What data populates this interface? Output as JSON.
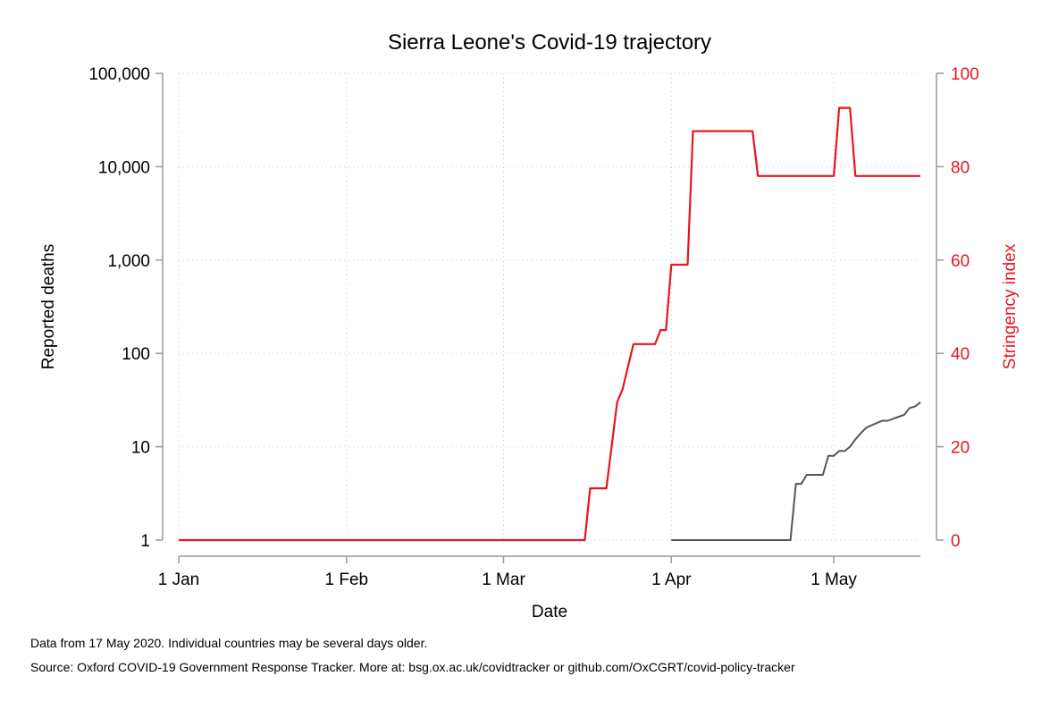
{
  "chart_data": {
    "type": "line",
    "title": "Sierra Leone's Covid-19 trajectory",
    "xlabel": "Date",
    "ylabel_left": "Reported deaths",
    "ylabel_right": "Stringency index",
    "x_ticks": [
      "1 Jan",
      "1 Feb",
      "1 Mar",
      "1 Apr",
      "1 May"
    ],
    "x_range": [
      "2020-01-01",
      "2020-05-17"
    ],
    "y_left_scale": "log",
    "y_left_ticks": [
      "1",
      "10",
      "100",
      "1,000",
      "10,000",
      "100,000"
    ],
    "y_left_range": [
      1,
      100000
    ],
    "y_right_ticks": [
      "0",
      "20",
      "40",
      "60",
      "80",
      "100"
    ],
    "y_right_range": [
      0,
      100
    ],
    "grid": true,
    "colors": {
      "deaths": "#555555",
      "stringency": "#e8141e",
      "axis": "#999999"
    },
    "series": [
      {
        "key": "deaths",
        "axis": "left",
        "points": [
          [
            "2020-04-01",
            1
          ],
          [
            "2020-04-02",
            1
          ],
          [
            "2020-04-03",
            1
          ],
          [
            "2020-04-04",
            1
          ],
          [
            "2020-04-05",
            1
          ],
          [
            "2020-04-06",
            1
          ],
          [
            "2020-04-07",
            1
          ],
          [
            "2020-04-08",
            1
          ],
          [
            "2020-04-09",
            1
          ],
          [
            "2020-04-10",
            1
          ],
          [
            "2020-04-11",
            1
          ],
          [
            "2020-04-12",
            1
          ],
          [
            "2020-04-13",
            1
          ],
          [
            "2020-04-14",
            1
          ],
          [
            "2020-04-15",
            1
          ],
          [
            "2020-04-16",
            1
          ],
          [
            "2020-04-17",
            1
          ],
          [
            "2020-04-18",
            1
          ],
          [
            "2020-04-19",
            1
          ],
          [
            "2020-04-20",
            1
          ],
          [
            "2020-04-21",
            1
          ],
          [
            "2020-04-22",
            1
          ],
          [
            "2020-04-23",
            1
          ],
          [
            "2020-04-24",
            4
          ],
          [
            "2020-04-25",
            4
          ],
          [
            "2020-04-26",
            5
          ],
          [
            "2020-04-27",
            5
          ],
          [
            "2020-04-28",
            5
          ],
          [
            "2020-04-29",
            5
          ],
          [
            "2020-04-30",
            8
          ],
          [
            "2020-05-01",
            8
          ],
          [
            "2020-05-02",
            9
          ],
          [
            "2020-05-03",
            9
          ],
          [
            "2020-05-04",
            10
          ],
          [
            "2020-05-05",
            12
          ],
          [
            "2020-05-06",
            14
          ],
          [
            "2020-05-07",
            16
          ],
          [
            "2020-05-08",
            17
          ],
          [
            "2020-05-09",
            18
          ],
          [
            "2020-05-10",
            19
          ],
          [
            "2020-05-11",
            19
          ],
          [
            "2020-05-12",
            20
          ],
          [
            "2020-05-13",
            21
          ],
          [
            "2020-05-14",
            22
          ],
          [
            "2020-05-15",
            26
          ],
          [
            "2020-05-16",
            27
          ],
          [
            "2020-05-17",
            30
          ]
        ]
      },
      {
        "key": "stringency",
        "axis": "right",
        "points": [
          [
            "2020-01-01",
            0
          ],
          [
            "2020-03-16",
            0
          ],
          [
            "2020-03-17",
            11.1
          ],
          [
            "2020-03-20",
            11.1
          ],
          [
            "2020-03-22",
            29.6
          ],
          [
            "2020-03-23",
            32.4
          ],
          [
            "2020-03-25",
            42
          ],
          [
            "2020-03-29",
            42
          ],
          [
            "2020-03-30",
            45
          ],
          [
            "2020-03-31",
            45
          ],
          [
            "2020-04-01",
            59
          ],
          [
            "2020-04-04",
            59
          ],
          [
            "2020-04-05",
            87.6
          ],
          [
            "2020-04-16",
            87.6
          ],
          [
            "2020-04-17",
            78
          ],
          [
            "2020-05-01",
            78
          ],
          [
            "2020-05-02",
            92.6
          ],
          [
            "2020-05-04",
            92.6
          ],
          [
            "2020-05-05",
            78
          ],
          [
            "2020-05-17",
            78
          ]
        ]
      }
    ]
  },
  "footer": {
    "note1": "Data from 17 May 2020. Individual countries may be several days older.",
    "note2": "Source: Oxford COVID-19 Government Response Tracker. More at: bsg.ox.ac.uk/covidtracker or github.com/OxCGRT/covid-policy-tracker"
  }
}
